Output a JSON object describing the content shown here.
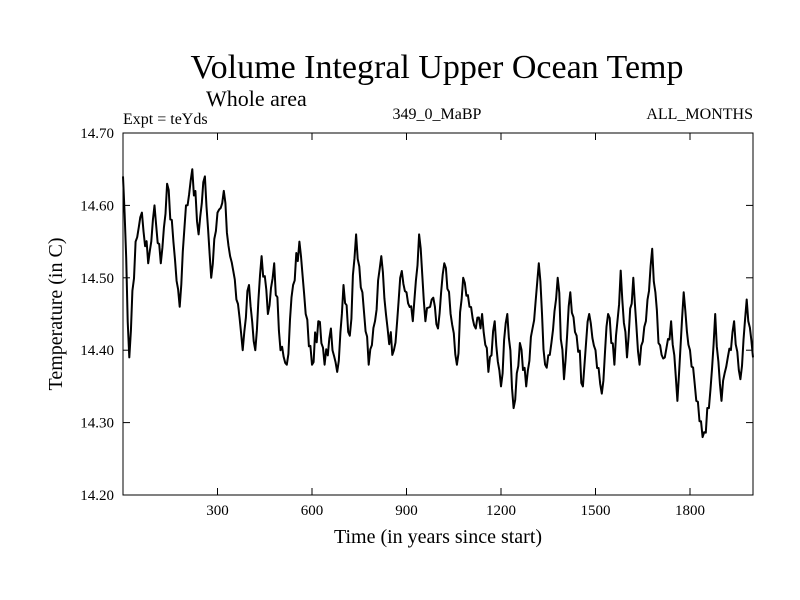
{
  "chart_data": {
    "type": "line",
    "title": "Volume Integral Upper Ocean Temp",
    "subtitle": "Whole area",
    "annotations": {
      "left": "Expt = teYds",
      "center": "349_0_MaBP",
      "right": "ALL_MONTHS"
    },
    "xlabel": "Time (in years since start)",
    "ylabel": "Temperature (in C)",
    "xlim": [
      0,
      2000
    ],
    "ylim": [
      14.2,
      14.7
    ],
    "xticks": [
      300,
      600,
      900,
      1200,
      1500,
      1800
    ],
    "xtick_labels": [
      "300",
      "600",
      "900",
      "1200",
      "1500",
      "1800"
    ],
    "yticks": [
      14.2,
      14.3,
      14.4,
      14.5,
      14.6,
      14.7
    ],
    "ytick_labels": [
      "14.20",
      "14.30",
      "14.40",
      "14.50",
      "14.60",
      "14.70"
    ],
    "grid": false,
    "series": [
      {
        "name": "Temperature",
        "color": "#000000",
        "x": [
          0,
          20,
          40,
          60,
          80,
          100,
          120,
          140,
          160,
          180,
          200,
          220,
          240,
          260,
          280,
          300,
          320,
          340,
          360,
          380,
          400,
          420,
          440,
          460,
          480,
          500,
          520,
          540,
          560,
          580,
          600,
          620,
          640,
          660,
          680,
          700,
          720,
          740,
          760,
          780,
          800,
          820,
          840,
          860,
          880,
          900,
          920,
          940,
          960,
          980,
          1000,
          1020,
          1040,
          1060,
          1080,
          1100,
          1120,
          1140,
          1160,
          1180,
          1200,
          1220,
          1240,
          1260,
          1280,
          1300,
          1320,
          1340,
          1360,
          1380,
          1400,
          1420,
          1440,
          1460,
          1480,
          1500,
          1520,
          1540,
          1560,
          1580,
          1600,
          1620,
          1640,
          1660,
          1680,
          1700,
          1720,
          1740,
          1760,
          1780,
          1800,
          1820,
          1840,
          1860,
          1880,
          1900,
          1920,
          1940,
          1960,
          1980,
          2000
        ],
        "values": [
          14.64,
          14.39,
          14.55,
          14.59,
          14.52,
          14.6,
          14.52,
          14.63,
          14.55,
          14.46,
          14.6,
          14.65,
          14.56,
          14.64,
          14.5,
          14.59,
          14.62,
          14.53,
          14.47,
          14.4,
          14.49,
          14.4,
          14.53,
          14.45,
          14.52,
          14.4,
          14.38,
          14.49,
          14.55,
          14.45,
          14.38,
          14.44,
          14.38,
          14.43,
          14.37,
          14.49,
          14.42,
          14.56,
          14.48,
          14.38,
          14.44,
          14.53,
          14.43,
          14.4,
          14.5,
          14.48,
          14.44,
          14.56,
          14.44,
          14.47,
          14.43,
          14.52,
          14.45,
          14.38,
          14.5,
          14.46,
          14.43,
          14.45,
          14.37,
          14.44,
          14.35,
          14.45,
          14.32,
          14.41,
          14.35,
          14.43,
          14.52,
          14.38,
          14.41,
          14.5,
          14.36,
          14.48,
          14.42,
          14.35,
          14.45,
          14.4,
          14.34,
          14.45,
          14.38,
          14.51,
          14.39,
          14.5,
          14.38,
          14.44,
          14.54,
          14.41,
          14.39,
          14.44,
          14.33,
          14.48,
          14.4,
          14.33,
          14.28,
          14.32,
          14.45,
          14.33,
          14.39,
          14.44,
          14.36,
          14.47,
          14.39
        ]
      }
    ]
  }
}
